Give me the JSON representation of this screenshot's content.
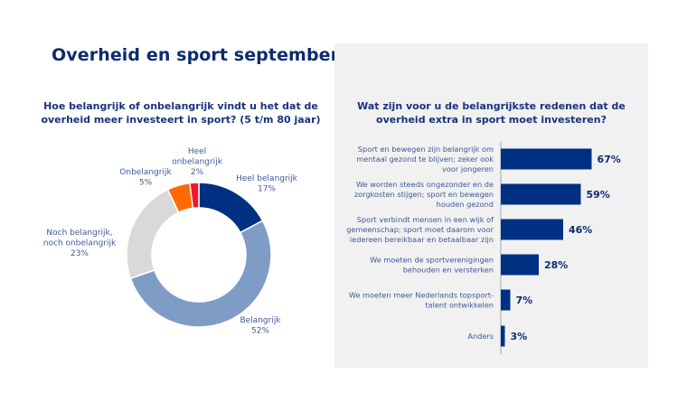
{
  "page": {
    "title": "Overheid en sport september 2023"
  },
  "colors": {
    "navy": "#003082",
    "lightblue": "#7f9cc7",
    "grey": "#d9d9d9",
    "orange": "#ff6a00",
    "red": "#f0192e",
    "panel": "#f1f1f1"
  },
  "chart_data": [
    {
      "type": "pie",
      "variant": "donut",
      "title": "Hoe belangrijk of onbelangrijk vindt u het dat de overheid meer investeert in sport? (5 t/m 80 jaar)",
      "slices": [
        {
          "label": "Heel belangrijk",
          "label_lines": [
            "Heel belangrijk"
          ],
          "value": 17,
          "display": "17%",
          "color": "#003082"
        },
        {
          "label": "Belangrijk",
          "label_lines": [
            "Belangrijk"
          ],
          "value": 52,
          "display": "52%",
          "color": "#7f9cc7"
        },
        {
          "label": "Noch belangrijk, noch onbelangrijk",
          "label_lines": [
            "Noch belangrijk,",
            "noch onbelangrijk"
          ],
          "value": 23,
          "display": "23%",
          "color": "#d9d9d9"
        },
        {
          "label": "Onbelangrijk",
          "label_lines": [
            "Onbelangrijk"
          ],
          "value": 5,
          "display": "5%",
          "color": "#ff6a00"
        },
        {
          "label": "Heel onbelangrijk",
          "label_lines": [
            "Heel",
            "onbelangrijk"
          ],
          "value": 2,
          "display": "2%",
          "color": "#f0192e"
        }
      ]
    },
    {
      "type": "bar",
      "orientation": "horizontal",
      "title": "Wat zijn voor u de belangrijkste redenen dat de overheid extra in sport moet investeren?",
      "xlim": [
        0,
        100
      ],
      "categories": [
        "Sport en bewegen zijn belangrijk om mentaal gezond te blijven; zeker ook voor jongeren",
        "We worden steeds ongezonder en de zorgkosten stijgen; sport en bewegen houden gezond",
        "Sport verbindt mensen in een wijk of gemeenschap; sport moet daarom voor iedereen bereikbaar en betaalbaar zijn",
        "We moeten de sportverenigingen behouden en versterken",
        "We moeten meer Nederlands topsport-talent ontwikkelen",
        "Anders"
      ],
      "category_lines": [
        [
          "Sport en bewegen zijn belangrijk om",
          "mentaal gezond te blijven; zeker ook",
          "voor jongeren"
        ],
        [
          "We worden steeds ongezonder en de",
          "zorgkosten stijgen; sport en bewegen",
          "houden gezond"
        ],
        [
          "Sport verbindt mensen in een wijk of",
          "gemeenschap; sport moet daarom voor",
          "iedereen bereikbaar en betaalbaar zijn"
        ],
        [
          "We moeten de sportverenigingen",
          "behouden en versterken"
        ],
        [
          "We moeten meer Nederlands topsport-",
          "talent ontwikkelen"
        ],
        [
          "Anders"
        ]
      ],
      "values": [
        67,
        59,
        46,
        28,
        7,
        3
      ],
      "value_labels": [
        "67%",
        "59%",
        "46%",
        "28%",
        "7%",
        "3%"
      ],
      "color": "#003082",
      "grid": false,
      "legend": "none"
    }
  ]
}
